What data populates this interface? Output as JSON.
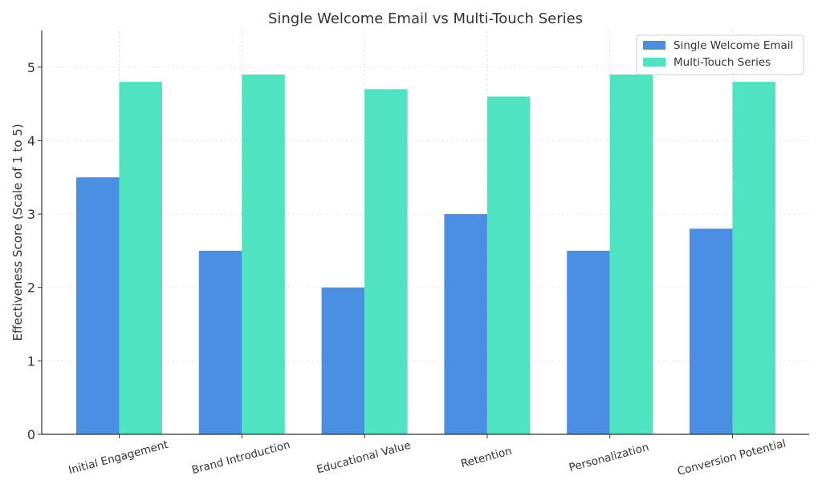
{
  "chart_data": {
    "type": "bar",
    "title": "Single Welcome Email vs Multi-Touch Series",
    "xlabel": "",
    "ylabel": "Effectiveness Score (Scale of 1 to 5)",
    "categories": [
      "Initial Engagement",
      "Brand Introduction",
      "Educational Value",
      "Retention",
      "Personalization",
      "Conversion Potential"
    ],
    "series": [
      {
        "name": "Single Welcome Email",
        "values": [
          3.5,
          2.5,
          2.0,
          3.0,
          2.5,
          2.8
        ],
        "color": "#4a8fe2"
      },
      {
        "name": "Multi-Touch Series",
        "values": [
          4.8,
          4.9,
          4.7,
          4.6,
          4.9,
          4.8
        ],
        "color": "#50e3c2"
      }
    ],
    "ylim": [
      0,
      5.5
    ],
    "yticks": [
      0,
      1,
      2,
      3,
      4,
      5
    ],
    "grid": true,
    "legend_position": "top-right"
  }
}
